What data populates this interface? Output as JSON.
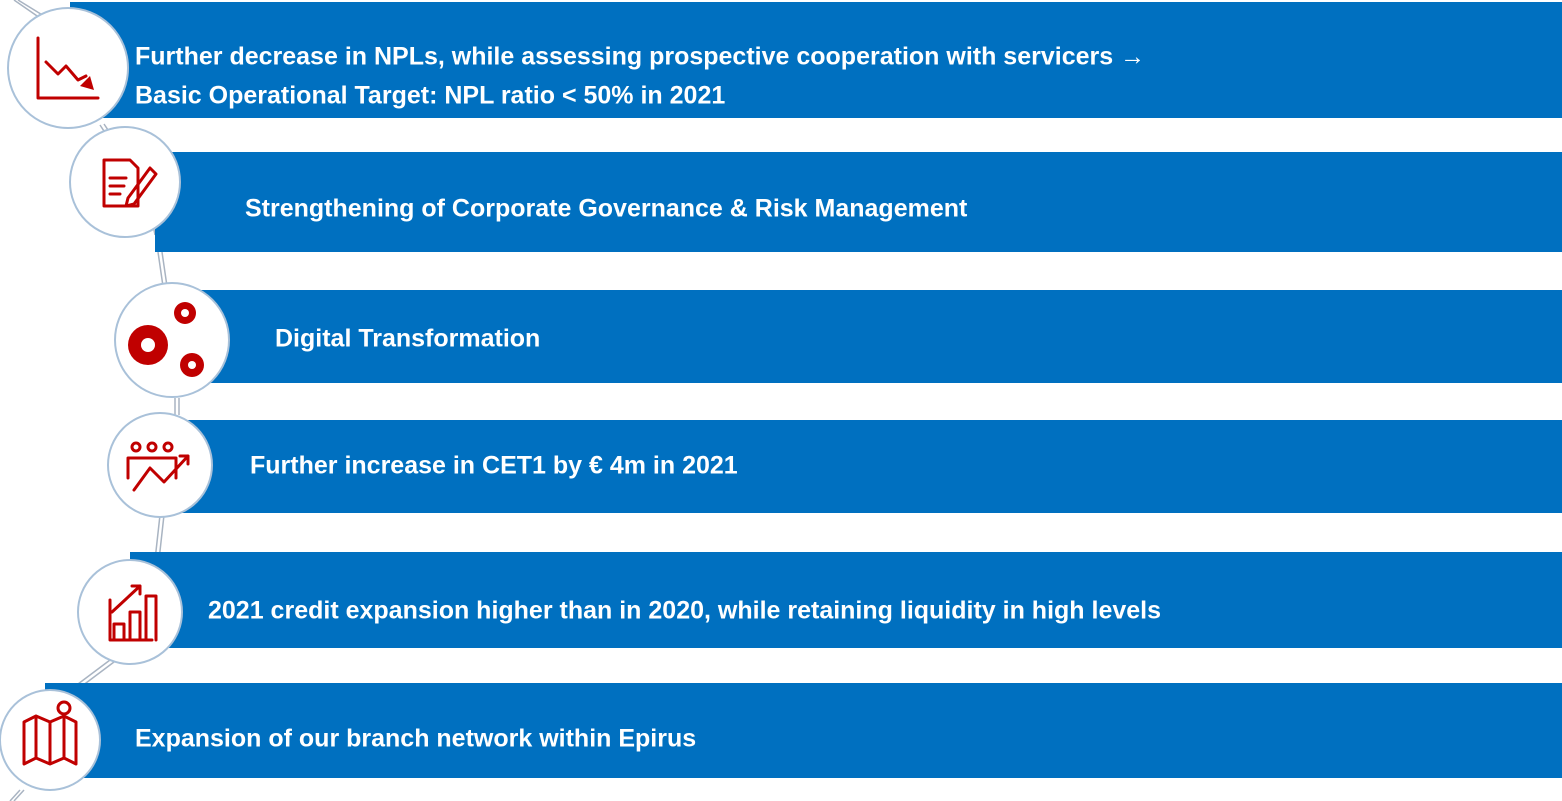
{
  "items": [
    {
      "lines": [
        "Further decrease in NPLs, while assessing prospective cooperation with servicers →",
        "Basic Operational Target: NPL ratio < 50% in 2021"
      ]
    },
    {
      "lines": [
        "Strengthening of Corporate Governance & Risk Management"
      ]
    },
    {
      "lines": [
        "Digital Transformation"
      ]
    },
    {
      "lines": [
        "Further increase in CET1 by € 4m in 2021"
      ]
    },
    {
      "lines": [
        "2021 credit expansion higher than in 2020, while retaining liquidity in high levels"
      ]
    },
    {
      "lines": [
        "Expansion of our branch network within Epirus"
      ]
    }
  ]
}
